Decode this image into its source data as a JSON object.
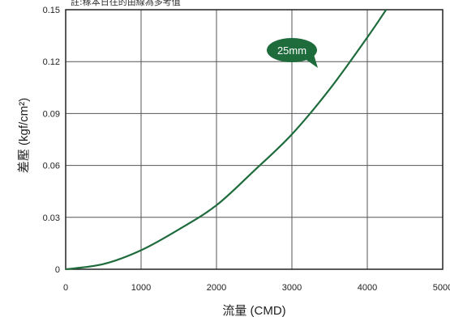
{
  "chart_data": {
    "type": "line",
    "title": "",
    "note": "註:稼本日往的由線為多考值",
    "xlabel": "流量 (CMD)",
    "ylabel": "差壓 (kgf/cm²)",
    "xlim": [
      0,
      5000
    ],
    "ylim": [
      0,
      0.15
    ],
    "x_ticks": [
      "0",
      "1000",
      "2000",
      "3000",
      "4000",
      "5000"
    ],
    "y_ticks": [
      "0",
      "0.03",
      "0.06",
      "0.09",
      "0.12",
      "0.15"
    ],
    "grid": true,
    "series": [
      {
        "name": "25mm",
        "color": "#1e6b3c",
        "x": [
          0,
          500,
          1000,
          1500,
          2000,
          2500,
          3000,
          3500,
          4000,
          4250
        ],
        "y": [
          0,
          0.003,
          0.011,
          0.023,
          0.037,
          0.057,
          0.078,
          0.104,
          0.134,
          0.15
        ]
      }
    ],
    "annotation": {
      "label": "25mm",
      "color": "#1e6b3c"
    }
  }
}
